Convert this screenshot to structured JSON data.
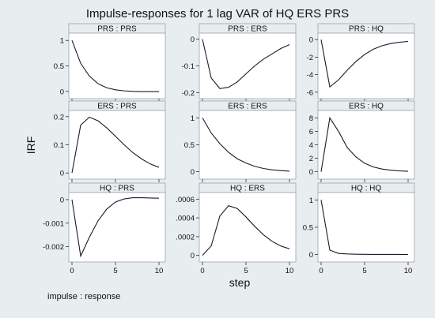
{
  "title": "Impulse-responses for 1 lag VAR of HQ ERS PRS",
  "ylabel": "IRF",
  "xlabel": "step",
  "note": "impulse : response",
  "colors": {
    "background": "#e8edf0",
    "panel": "#ffffff",
    "strip": "#e8edf0",
    "line": "#1a1a2e",
    "frame": "#9aa5ad"
  },
  "chart_data": [
    {
      "type": "line",
      "title": "PRS : PRS",
      "x": [
        0,
        1,
        2,
        3,
        4,
        5,
        6,
        7,
        8,
        9,
        10
      ],
      "y": [
        1,
        0.55,
        0.3,
        0.15,
        0.07,
        0.03,
        0.01,
        0.0,
        -0.005,
        -0.005,
        -0.004
      ],
      "yticks": [
        0,
        0.5,
        1
      ],
      "ytick_labels": [
        "0",
        "0.5",
        "1"
      ],
      "ylim": [
        -0.05,
        1.05
      ]
    },
    {
      "type": "line",
      "title": "PRS : ERS",
      "x": [
        0,
        1,
        2,
        3,
        4,
        5,
        6,
        7,
        8,
        9,
        10
      ],
      "y": [
        0,
        -0.145,
        -0.185,
        -0.18,
        -0.16,
        -0.13,
        -0.1,
        -0.075,
        -0.055,
        -0.035,
        -0.02
      ],
      "yticks": [
        0,
        -0.1,
        -0.2
      ],
      "ytick_labels": [
        "0",
        "-0.1",
        "-0.2"
      ],
      "ylim": [
        -0.205,
        0.005
      ]
    },
    {
      "type": "line",
      "title": "PRS : HQ",
      "x": [
        0,
        1,
        2,
        3,
        4,
        5,
        6,
        7,
        8,
        9,
        10
      ],
      "y": [
        0,
        -5.4,
        -4.6,
        -3.5,
        -2.5,
        -1.7,
        -1.1,
        -0.7,
        -0.45,
        -0.3,
        -0.2
      ],
      "yticks": [
        0,
        -2,
        -4,
        -6
      ],
      "ytick_labels": [
        "0",
        "-2",
        "-4",
        "-6"
      ],
      "ylim": [
        -6.2,
        0.2
      ]
    },
    {
      "type": "line",
      "title": "ERS : PRS",
      "x": [
        0,
        1,
        2,
        3,
        4,
        5,
        6,
        7,
        8,
        9,
        10
      ],
      "y": [
        0,
        0.17,
        0.198,
        0.185,
        0.16,
        0.13,
        0.1,
        0.072,
        0.05,
        0.032,
        0.02
      ],
      "yticks": [
        0,
        0.1,
        0.2
      ],
      "ytick_labels": [
        "0",
        "0.1",
        "0.2"
      ],
      "ylim": [
        -0.005,
        0.205
      ]
    },
    {
      "type": "line",
      "title": "ERS : ERS",
      "x": [
        0,
        1,
        2,
        3,
        4,
        5,
        6,
        7,
        8,
        9,
        10
      ],
      "y": [
        1,
        0.72,
        0.52,
        0.36,
        0.24,
        0.16,
        0.1,
        0.06,
        0.035,
        0.02,
        0.01
      ],
      "yticks": [
        0,
        0.5,
        1
      ],
      "ytick_labels": [
        "0",
        "0.5",
        "1"
      ],
      "ylim": [
        -0.05,
        1.05
      ]
    },
    {
      "type": "line",
      "title": "ERS : HQ",
      "x": [
        0,
        1,
        2,
        3,
        4,
        5,
        6,
        7,
        8,
        9,
        10
      ],
      "y": [
        0,
        8.0,
        6.0,
        3.6,
        2.2,
        1.25,
        0.7,
        0.4,
        0.22,
        0.12,
        0.06
      ],
      "yticks": [
        0,
        2,
        4,
        6,
        8
      ],
      "ytick_labels": [
        "0",
        "2",
        "4",
        "6",
        "8"
      ],
      "ylim": [
        -0.4,
        8.4
      ]
    },
    {
      "type": "line",
      "title": "HQ : PRS",
      "x": [
        0,
        1,
        2,
        3,
        4,
        5,
        6,
        7,
        8,
        9,
        10
      ],
      "y": [
        0,
        -0.0024,
        -0.0016,
        -0.0009,
        -0.0004,
        -0.0001,
        3e-05,
        8e-05,
        8e-05,
        7e-05,
        6e-05
      ],
      "yticks": [
        0,
        -0.001,
        -0.002
      ],
      "ytick_labels": [
        "0",
        "-0.001",
        "-0.002"
      ],
      "ylim": [
        -0.00245,
        0.0001
      ]
    },
    {
      "type": "line",
      "title": "HQ : ERS",
      "x": [
        0,
        1,
        2,
        3,
        4,
        5,
        6,
        7,
        8,
        9,
        10
      ],
      "y": [
        0,
        0.0001,
        0.00042,
        0.00053,
        0.0005,
        0.00041,
        0.00031,
        0.00022,
        0.00015,
        0.0001,
        7e-05
      ],
      "yticks": [
        0,
        0.0002,
        0.0004,
        0.0006
      ],
      "ytick_labels": [
        "0",
        ".0002",
        ".0004",
        ".0006"
      ],
      "ylim": [
        -2e-05,
        0.00062
      ]
    },
    {
      "type": "line",
      "title": "HQ : HQ",
      "x": [
        0,
        1,
        2,
        3,
        4,
        5,
        6,
        7,
        8,
        9,
        10
      ],
      "y": [
        1,
        0.08,
        0.02,
        0.01,
        0.005,
        0.003,
        0.002,
        0.001,
        0.001,
        0.001,
        0.0005
      ],
      "yticks": [
        0,
        0.5,
        1
      ],
      "ytick_labels": [
        "0",
        "0.5",
        "1"
      ],
      "ylim": [
        -0.05,
        1.05
      ]
    }
  ],
  "xticks": [
    0,
    5,
    10
  ],
  "xtick_labels": [
    "0",
    "5",
    "10"
  ],
  "xlim": [
    0,
    10
  ]
}
